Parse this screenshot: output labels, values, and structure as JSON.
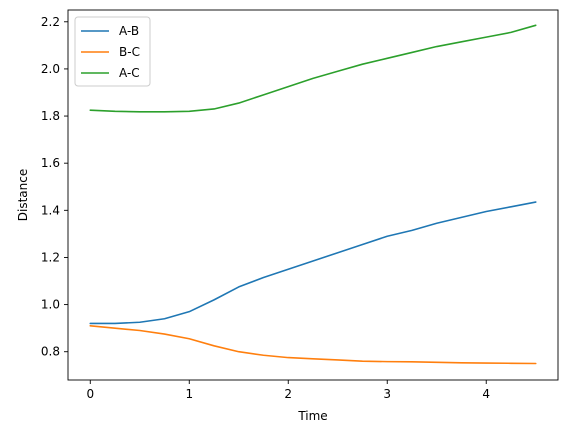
{
  "chart_data": {
    "type": "line",
    "title": "",
    "xlabel": "Time",
    "ylabel": "Distance",
    "xlim": [
      -0.225,
      4.725
    ],
    "ylim": [
      0.68,
      2.25
    ],
    "xticks": [
      0,
      1,
      2,
      3,
      4
    ],
    "yticks": [
      0.8,
      1.0,
      1.2,
      1.4,
      1.6,
      1.8,
      2.0,
      2.2
    ],
    "xtick_labels": [
      "0",
      "1",
      "2",
      "3",
      "4"
    ],
    "ytick_labels": [
      "0.8",
      "1.0",
      "1.2",
      "1.4",
      "1.6",
      "1.8",
      "2.0",
      "2.2"
    ],
    "grid": false,
    "legend_position": "upper-left",
    "x": [
      0,
      0.25,
      0.5,
      0.75,
      1.0,
      1.25,
      1.5,
      1.75,
      2.0,
      2.25,
      2.5,
      2.75,
      3.0,
      3.25,
      3.5,
      3.75,
      4.0,
      4.25,
      4.5
    ],
    "series": [
      {
        "name": "A-B",
        "color": "#1f77b4",
        "values": [
          0.92,
          0.92,
          0.925,
          0.94,
          0.97,
          1.02,
          1.075,
          1.115,
          1.15,
          1.185,
          1.22,
          1.255,
          1.29,
          1.315,
          1.345,
          1.37,
          1.395,
          1.415,
          1.435
        ]
      },
      {
        "name": "B-C",
        "color": "#ff7f0e",
        "values": [
          0.91,
          0.9,
          0.89,
          0.875,
          0.855,
          0.825,
          0.8,
          0.785,
          0.775,
          0.77,
          0.765,
          0.76,
          0.758,
          0.757,
          0.755,
          0.753,
          0.752,
          0.751,
          0.75
        ]
      },
      {
        "name": "A-C",
        "color": "#2ca02c",
        "values": [
          1.825,
          1.82,
          1.818,
          1.818,
          1.82,
          1.83,
          1.855,
          1.89,
          1.925,
          1.96,
          1.99,
          2.02,
          2.045,
          2.07,
          2.095,
          2.115,
          2.135,
          2.155,
          2.185
        ]
      }
    ]
  }
}
